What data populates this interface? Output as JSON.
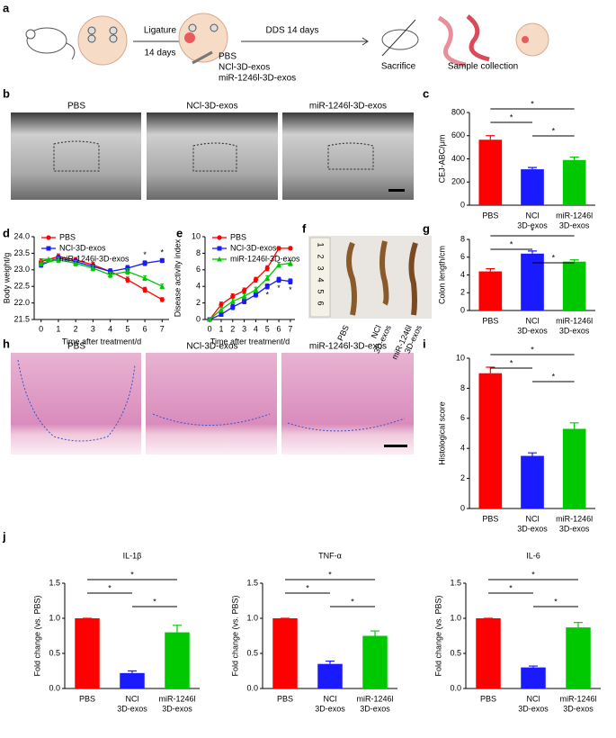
{
  "panel_labels": [
    "a",
    "b",
    "c",
    "d",
    "e",
    "f",
    "g",
    "h",
    "i",
    "j"
  ],
  "schematic": {
    "ligature": "Ligature",
    "days": "14 days",
    "dds": "DDS 14 days",
    "treatments": [
      "PBS",
      "NCl-3D-exos",
      "miR-1246l-3D-exos"
    ],
    "sacrifice": "Sacrifice",
    "collection": "Sample collection"
  },
  "micro_ct": {
    "labels": [
      "PBS",
      "NCl-3D-exos",
      "miR-1246l-3D-exos"
    ]
  },
  "colon_photo": {
    "labels": [
      [
        "PBS"
      ],
      [
        "NCl",
        "3D-exos"
      ],
      [
        "miR-1246l",
        "3D-exos"
      ]
    ],
    "ruler": [
      "1",
      "2",
      "3",
      "4",
      "5",
      "6"
    ]
  },
  "histology": {
    "labels": [
      "PBS",
      "NCl-3D-exos",
      "miR-1246l-3D-exos"
    ]
  },
  "chart_data": [
    {
      "type": "bar",
      "ylabel": "CEJ-ABC/μm",
      "categories": [
        [
          "PBS"
        ],
        [
          "NCl",
          "3D-exos"
        ],
        [
          "miR-1246l",
          "3D-exos"
        ]
      ],
      "values": [
        565,
        310,
        390
      ],
      "errors": [
        35,
        15,
        25
      ],
      "colors": [
        "#ff0000",
        "#1a1aff",
        "#00c800"
      ],
      "ylim": [
        0,
        800
      ],
      "yticks": [
        0,
        200,
        400,
        600,
        800
      ],
      "comparisons": [
        {
          "pair": [
            0,
            2
          ],
          "label": "*"
        },
        {
          "pair": [
            0,
            1
          ],
          "label": "*"
        },
        {
          "pair": [
            1,
            2
          ],
          "label": "*"
        }
      ]
    },
    {
      "type": "line",
      "xlabel": "Time after treatment/d",
      "ylabel": "Body weight/g",
      "x": [
        0,
        1,
        2,
        3,
        4,
        5,
        6,
        7
      ],
      "xlim": [
        -0.4,
        7.4
      ],
      "xticks": [
        0,
        1,
        2,
        3,
        4,
        5,
        6,
        7
      ],
      "ylim": [
        21.5,
        24.0
      ],
      "yticks": [
        21.5,
        {
          "value": 22,
          "label": "22.0"
        },
        22.5,
        {
          "value": 23,
          "label": "23.0"
        },
        23.5,
        {
          "value": 24,
          "label": "24.0"
        }
      ],
      "legend": "top-left",
      "series": [
        {
          "name": "PBS",
          "color": "#ff0000",
          "marker": "circle",
          "values": [
            23.25,
            23.4,
            23.3,
            23.15,
            22.95,
            22.7,
            22.4,
            22.1
          ],
          "errors": [
            0.08,
            0.08,
            0.07,
            0.08,
            0.08,
            0.08,
            0.07,
            0.06
          ]
        },
        {
          "name": "NCl-3D-exos",
          "color": "#1a1aff",
          "marker": "square",
          "values": [
            23.15,
            23.35,
            23.25,
            23.1,
            22.95,
            23.05,
            23.2,
            23.28
          ],
          "errors": [
            0.07,
            0.08,
            0.07,
            0.07,
            0.08,
            0.08,
            0.07,
            0.06
          ]
        },
        {
          "name": "miR-1246l-3D-exos",
          "color": "#00c800",
          "marker": "triangle",
          "values": [
            23.2,
            23.3,
            23.2,
            23.05,
            22.85,
            22.95,
            22.75,
            22.5
          ],
          "errors": [
            0.08,
            0.08,
            0.08,
            0.08,
            0.08,
            0.08,
            0.07,
            0.07
          ]
        }
      ],
      "annotations": [
        {
          "x": 6,
          "label": "*",
          "position": "above"
        },
        {
          "x": 7,
          "label": "*",
          "position": "above"
        }
      ]
    },
    {
      "type": "line",
      "xlabel": "Time after treatment/d",
      "ylabel": "Disease activity index",
      "x": [
        0,
        1,
        2,
        3,
        4,
        5,
        6,
        7
      ],
      "xlim": [
        -0.4,
        7.4
      ],
      "xticks": [
        0,
        1,
        2,
        3,
        4,
        5,
        6,
        7
      ],
      "ylim": [
        0,
        10
      ],
      "yticks": [
        0,
        2,
        4,
        6,
        8,
        10
      ],
      "legend": "top-left",
      "series": [
        {
          "name": "PBS",
          "color": "#ff0000",
          "marker": "circle",
          "values": [
            0,
            1.8,
            2.8,
            3.5,
            4.8,
            6.2,
            8.6,
            8.6
          ],
          "errors": [
            0.1,
            0.3,
            0.3,
            0.3,
            0.3,
            0.3,
            0.2,
            0.2
          ]
        },
        {
          "name": "NCl-3D-exos",
          "color": "#1a1aff",
          "marker": "square",
          "values": [
            0,
            0.6,
            1.5,
            2.2,
            3,
            4,
            4.8,
            4.6
          ],
          "errors": [
            0.1,
            0.2,
            0.3,
            0.3,
            0.3,
            0.3,
            0.3,
            0.3
          ]
        },
        {
          "name": "miR-1246l-3D-exos",
          "color": "#00c800",
          "marker": "triangle",
          "values": [
            0,
            1.2,
            2.2,
            2.8,
            3.6,
            5,
            6.6,
            6.8
          ],
          "errors": [
            0.1,
            0.3,
            0.3,
            0.3,
            0.3,
            0.3,
            0.3,
            0.3
          ]
        }
      ],
      "annotations": [
        {
          "x": 5,
          "label": "*",
          "position": "below"
        },
        {
          "x": 6,
          "label": "*",
          "position": "below"
        },
        {
          "x": 7,
          "label": "*",
          "position": "below"
        }
      ]
    },
    {
      "type": "bar",
      "ylabel": "Colon length/cm",
      "categories": [
        [
          "PBS"
        ],
        [
          "NCl",
          "3D-exos"
        ],
        [
          "miR-1246l",
          "3D-exos"
        ]
      ],
      "values": [
        4.4,
        6.4,
        5.5
      ],
      "errors": [
        0.3,
        0.3,
        0.2
      ],
      "colors": [
        "#ff0000",
        "#1a1aff",
        "#00c800"
      ],
      "ylim": [
        0,
        8
      ],
      "yticks": [
        0,
        2,
        4,
        6,
        8
      ],
      "comparisons": [
        {
          "pair": [
            0,
            2
          ],
          "label": "*"
        },
        {
          "pair": [
            0,
            1
          ],
          "label": "*"
        },
        {
          "pair": [
            1,
            2
          ],
          "label": "*"
        }
      ]
    },
    {
      "type": "bar",
      "ylabel": "Histological score",
      "categories": [
        [
          "PBS"
        ],
        [
          "NCl",
          "3D-exos"
        ],
        [
          "miR-1246l",
          "3D-exos"
        ]
      ],
      "values": [
        9.0,
        3.5,
        5.3
      ],
      "errors": [
        0.4,
        0.2,
        0.4
      ],
      "colors": [
        "#ff0000",
        "#1a1aff",
        "#00c800"
      ],
      "ylim": [
        0,
        10
      ],
      "yticks": [
        0,
        2,
        4,
        6,
        8,
        10
      ],
      "comparisons": [
        {
          "pair": [
            0,
            2
          ],
          "label": "*"
        },
        {
          "pair": [
            0,
            1
          ],
          "label": "*"
        },
        {
          "pair": [
            1,
            2
          ],
          "label": "*"
        }
      ]
    },
    {
      "type": "bar",
      "title": "IL-1β",
      "ylabel": "Fold change (vs. PBS)",
      "categories": [
        [
          "PBS"
        ],
        [
          "NCl",
          "3D-exos"
        ],
        [
          "miR-1246l",
          "3D-exos"
        ]
      ],
      "values": [
        1,
        0.22,
        0.8
      ],
      "errors": [
        0,
        0.03,
        0.1
      ],
      "colors": [
        "#ff0000",
        "#1a1aff",
        "#00c800"
      ],
      "ylim": [
        0,
        1.5
      ],
      "yticks": [
        {
          "value": 0,
          "label": "0.0"
        },
        0.5,
        {
          "value": 1,
          "label": "1.0"
        },
        1.5
      ],
      "comparisons": [
        {
          "pair": [
            0,
            2
          ],
          "label": "*"
        },
        {
          "pair": [
            0,
            1
          ],
          "label": "*"
        },
        {
          "pair": [
            1,
            2
          ],
          "label": "*"
        }
      ]
    },
    {
      "type": "bar",
      "title": "TNF-α",
      "ylabel": "Fold change (vs. PBS)",
      "categories": [
        [
          "PBS"
        ],
        [
          "NCl",
          "3D-exos"
        ],
        [
          "miR-1246l",
          "3D-exos"
        ]
      ],
      "values": [
        1,
        0.35,
        0.75
      ],
      "errors": [
        0,
        0.04,
        0.07
      ],
      "colors": [
        "#ff0000",
        "#1a1aff",
        "#00c800"
      ],
      "ylim": [
        0,
        1.5
      ],
      "yticks": [
        {
          "value": 0,
          "label": "0.0"
        },
        0.5,
        {
          "value": 1,
          "label": "1.0"
        },
        1.5
      ],
      "comparisons": [
        {
          "pair": [
            0,
            2
          ],
          "label": "*"
        },
        {
          "pair": [
            0,
            1
          ],
          "label": "*"
        },
        {
          "pair": [
            1,
            2
          ],
          "label": "*"
        }
      ]
    },
    {
      "type": "bar",
      "title": "IL-6",
      "ylabel": "Fold change (vs. PBS)",
      "categories": [
        [
          "PBS"
        ],
        [
          "NCl",
          "3D-exos"
        ],
        [
          "miR-1246l",
          "3D-exos"
        ]
      ],
      "values": [
        1,
        0.3,
        0.87
      ],
      "errors": [
        0,
        0.02,
        0.07
      ],
      "colors": [
        "#ff0000",
        "#1a1aff",
        "#00c800"
      ],
      "ylim": [
        0,
        1.5
      ],
      "yticks": [
        {
          "value": 0,
          "label": "0.0"
        },
        0.5,
        {
          "value": 1,
          "label": "1.0"
        },
        1.5
      ],
      "comparisons": [
        {
          "pair": [
            0,
            2
          ],
          "label": "*"
        },
        {
          "pair": [
            0,
            1
          ],
          "label": "*"
        },
        {
          "pair": [
            1,
            2
          ],
          "label": "*"
        }
      ]
    }
  ]
}
